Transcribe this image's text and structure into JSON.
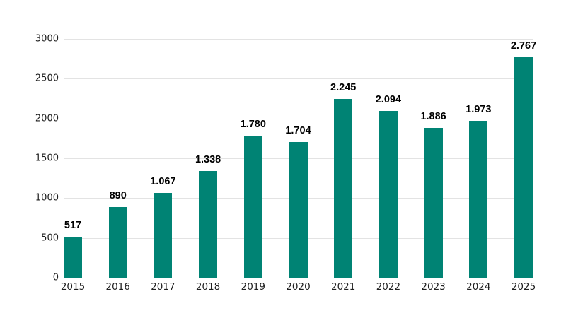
{
  "chart_data": {
    "type": "bar",
    "title": "",
    "xlabel": "",
    "ylabel": "",
    "categories": [
      "2015",
      "2016",
      "2017",
      "2018",
      "2019",
      "2020",
      "2021",
      "2022",
      "2023",
      "2024",
      "2025"
    ],
    "values": [
      517,
      890,
      1067,
      1338,
      1780,
      1704,
      2245,
      2094,
      1886,
      1973,
      2767
    ],
    "value_labels": [
      "517",
      "890",
      "1.067",
      "1.338",
      "1.780",
      "1.704",
      "2.245",
      "2.094",
      "1.886",
      "1.973",
      "2.767"
    ],
    "ylim": [
      0,
      3000
    ],
    "ytick_step": 500,
    "ytick_labels": [
      "0",
      "500",
      "1000",
      "1500",
      "2000",
      "2500",
      "3000"
    ],
    "grid": "horizontal",
    "legend": "none",
    "colors": {
      "bar": "#008374",
      "gridline": "#e3e3e3",
      "tick_label": "#1f1f1f",
      "value_label": "#000000",
      "background": "#ffffff"
    }
  }
}
